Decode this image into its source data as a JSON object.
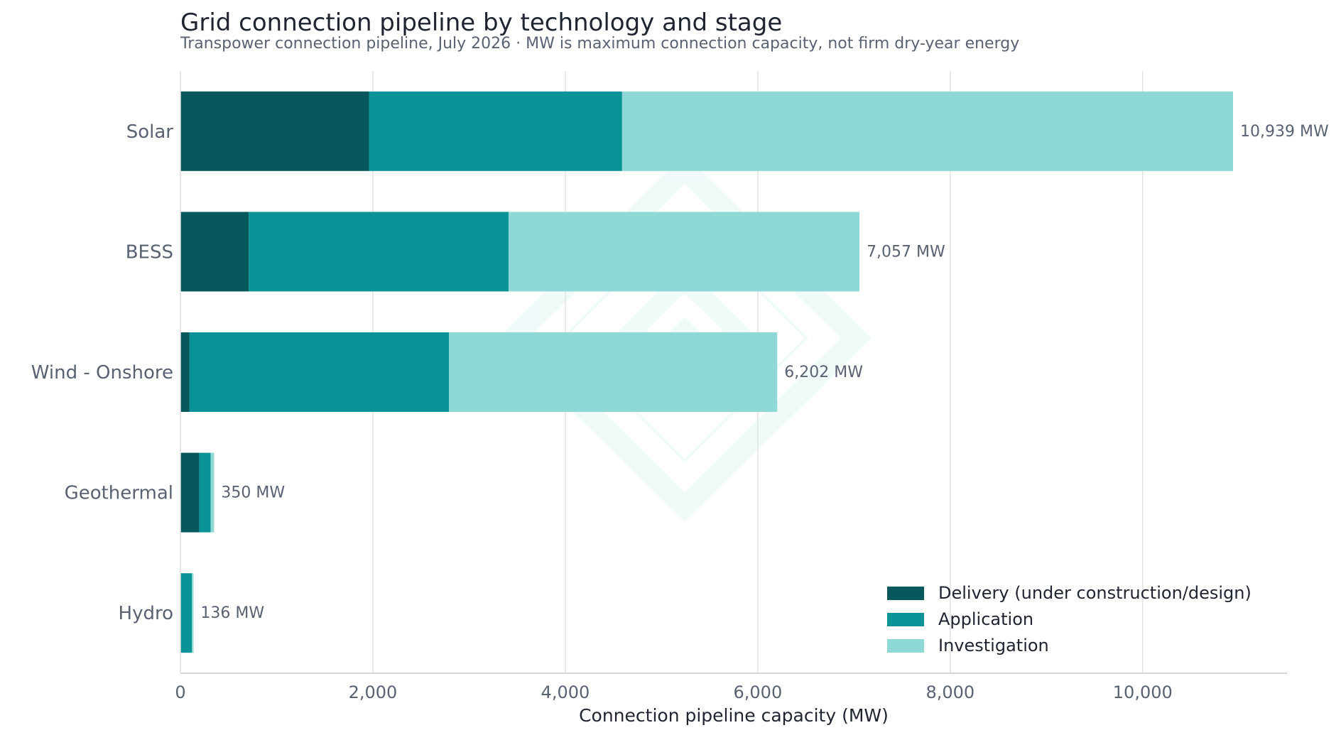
{
  "chart_data": {
    "type": "bar",
    "orientation": "horizontal",
    "stacked": true,
    "title": "Grid connection pipeline by technology and stage",
    "subtitle": "Transpower connection pipeline, July 2026 · MW is maximum connection capacity, not firm dry-year energy",
    "xlabel": "Connection pipeline capacity (MW)",
    "ylabel": "",
    "xlim": [
      0,
      11500
    ],
    "xticks": [
      0,
      2000,
      4000,
      6000,
      8000,
      10000
    ],
    "xtick_labels": [
      "0",
      "2,000",
      "4,000",
      "6,000",
      "8,000",
      "10,000"
    ],
    "grid": "vertical",
    "legend_position": "bottom-right",
    "categories": [
      "Solar",
      "BESS",
      "Wind - Onshore",
      "Geothermal",
      "Hydro"
    ],
    "series": [
      {
        "name": "Delivery (under construction/design)",
        "color": "#06585c",
        "values": [
          1960,
          710,
          95,
          195,
          0
        ]
      },
      {
        "name": "Application",
        "color": "#0a9396",
        "values": [
          2630,
          2700,
          2695,
          120,
          120
        ]
      },
      {
        "name": "Investigation",
        "color": "#8ed9d5",
        "values": [
          6349,
          3647,
          3412,
          35,
          16
        ]
      }
    ],
    "total_labels": [
      "10,939 MW",
      "7,057 MW",
      "6,202 MW",
      "350 MW",
      "136 MW"
    ],
    "watermark": "diamond-logo"
  }
}
